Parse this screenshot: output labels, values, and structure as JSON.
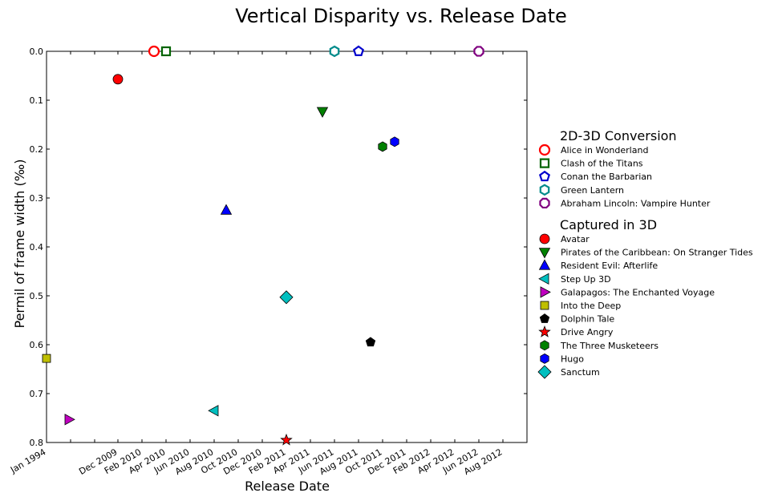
{
  "chart_data": {
    "type": "scatter",
    "title": "Vertical Disparity vs. Release Date",
    "xlabel": "Release Date",
    "ylabel": "Permil of frame width (‰)",
    "ylim": [
      0.8,
      0.0
    ],
    "y_inverted": true,
    "y_ticks": [
      "0.0",
      "0.1",
      "0.2",
      "0.3",
      "0.4",
      "0.5",
      "0.6",
      "0.7",
      "0.8"
    ],
    "x_ticks": [
      "Jan 1994",
      "Dec 2009",
      "Feb 2010",
      "Apr 2010",
      "Jun 2010",
      "Aug 2010",
      "Oct 2010",
      "Dec 2010",
      "Feb 2011",
      "Apr 2011",
      "Jun 2011",
      "Aug 2011",
      "Oct 2011",
      "Dec 2011",
      "Feb 2012",
      "Apr 2012",
      "Jun 2012",
      "Aug 2012"
    ],
    "grid": false,
    "legend_position": "right",
    "legend_groups": [
      {
        "title": "2D-3D Conversion",
        "series": [
          {
            "name": "Alice in Wonderland",
            "marker": "circle",
            "filled": false,
            "color": "#ff0000",
            "x": "Mar 2010",
            "y": 0.0
          },
          {
            "name": "Clash of the Titans",
            "marker": "square",
            "filled": false,
            "color": "#006400",
            "x": "Apr 2010",
            "y": 0.0
          },
          {
            "name": "Conan the Barbarian",
            "marker": "pentagon",
            "filled": false,
            "color": "#0000cc",
            "x": "Aug 2011",
            "y": 0.0
          },
          {
            "name": "Green Lantern",
            "marker": "hexagon",
            "filled": false,
            "color": "#008b8b",
            "x": "Jun 2011",
            "y": 0.0
          },
          {
            "name": "Abraham Lincoln: Vampire Hunter",
            "marker": "octagon",
            "filled": false,
            "color": "#800080",
            "x": "Jun 2012",
            "y": 0.0
          }
        ]
      },
      {
        "title": "Captured in 3D",
        "series": [
          {
            "name": "Avatar",
            "marker": "circle",
            "filled": true,
            "color": "#ff0000",
            "x": "Dec 2009",
            "y": 0.057
          },
          {
            "name": "Pirates of the Caribbean: On Stranger Tides",
            "marker": "triangle-down",
            "filled": true,
            "color": "#008000",
            "x": "May 2011",
            "y": 0.123
          },
          {
            "name": "Resident Evil: Afterlife",
            "marker": "triangle-up",
            "filled": true,
            "color": "#0000ff",
            "x": "Sep 2010",
            "y": 0.325
          },
          {
            "name": "Step Up 3D",
            "marker": "triangle-left",
            "filled": true,
            "color": "#00bfbf",
            "x": "Aug 2010",
            "y": 0.735
          },
          {
            "name": "Galapagos: The Enchanted Voyage",
            "marker": "triangle-right",
            "filled": true,
            "color": "#bf00bf",
            "x": "Jan 1999",
            "y": 0.753
          },
          {
            "name": "Into the Deep",
            "marker": "square",
            "filled": true,
            "color": "#bfbf00",
            "x": "Jan 1994",
            "y": 0.628
          },
          {
            "name": "Dolphin Tale",
            "marker": "pentagon",
            "filled": true,
            "color": "#000000",
            "x": "Sep 2011",
            "y": 0.595
          },
          {
            "name": "Drive Angry",
            "marker": "star",
            "filled": true,
            "color": "#ff0000",
            "x": "Feb 2011",
            "y": 0.795
          },
          {
            "name": "The Three Musketeers",
            "marker": "hexagon",
            "filled": true,
            "color": "#008000",
            "x": "Oct 2011",
            "y": 0.195
          },
          {
            "name": "Hugo",
            "marker": "hexagon",
            "filled": true,
            "color": "#0000ff",
            "x": "Nov 2011",
            "y": 0.185
          },
          {
            "name": "Sanctum",
            "marker": "diamond",
            "filled": true,
            "color": "#00bfbf",
            "x": "Feb 2011",
            "y": 0.503
          }
        ]
      }
    ]
  }
}
